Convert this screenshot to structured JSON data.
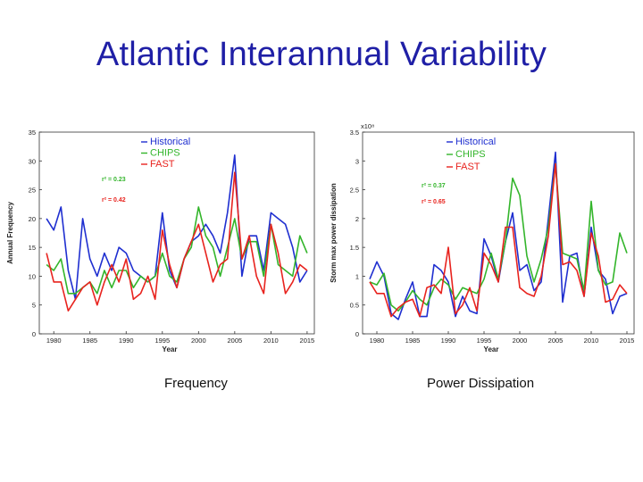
{
  "slide": {
    "title": "Atlantic Interannual Variability"
  },
  "captions": {
    "left": "Frequency",
    "right": "Power Dissipation"
  },
  "colors": {
    "historical": "#1f2fd0",
    "chips": "#33b52b",
    "fast": "#e8231e",
    "title": "#1f1fa6"
  },
  "chart_data": [
    {
      "type": "line",
      "ylabel": "Annual Frequency",
      "xlabel": "Year",
      "xlim": [
        1978,
        2016
      ],
      "ylim": [
        0,
        35
      ],
      "xticks": [
        1980,
        1985,
        1990,
        1995,
        2000,
        2005,
        2010,
        2015
      ],
      "yticks": [
        0,
        5,
        10,
        15,
        20,
        25,
        30,
        35
      ],
      "grid": false,
      "legend_position": "top-right",
      "legend": [
        "Historical",
        "CHIPS",
        "FAST"
      ],
      "annotations": [
        {
          "text": "r² = 0.23",
          "color": "#33b52b"
        },
        {
          "text": "r² = 0.42",
          "color": "#e8231e"
        }
      ],
      "x": [
        1979,
        1980,
        1981,
        1982,
        1983,
        1984,
        1985,
        1986,
        1987,
        1988,
        1989,
        1990,
        1991,
        1992,
        1993,
        1994,
        1995,
        1996,
        1997,
        1998,
        1999,
        2000,
        2001,
        2002,
        2003,
        2004,
        2005,
        2006,
        2007,
        2008,
        2009,
        2010,
        2011,
        2012,
        2013,
        2014,
        2015
      ],
      "series": [
        {
          "name": "Historical",
          "values": [
            20,
            18,
            22,
            11,
            6,
            20,
            13,
            10,
            14,
            11,
            15,
            14,
            11,
            10,
            9,
            10,
            21,
            11,
            8,
            13,
            16,
            17,
            19,
            17,
            14,
            21,
            31,
            10,
            17,
            17,
            11,
            21,
            20,
            19,
            15,
            9,
            11
          ]
        },
        {
          "name": "CHIPS",
          "values": [
            12,
            11,
            13,
            7,
            7,
            8,
            9,
            7,
            11,
            8,
            11,
            11,
            8,
            10,
            9,
            10,
            14,
            10,
            9,
            13,
            15,
            22,
            17,
            15,
            10,
            15,
            20,
            13,
            16,
            16,
            10,
            19,
            12,
            11,
            10,
            17,
            14
          ]
        },
        {
          "name": "FAST",
          "values": [
            14,
            9,
            9,
            4,
            6,
            8,
            9,
            5,
            9,
            12,
            9,
            13,
            6,
            7,
            10,
            6,
            18,
            12,
            8,
            13,
            16,
            19,
            14,
            9,
            12,
            13,
            28,
            13,
            17,
            10,
            7,
            19,
            14,
            7,
            9,
            12,
            11
          ]
        }
      ]
    },
    {
      "type": "line",
      "ylabel": "Storm max power dissipation",
      "xlabel": "Year",
      "xlim": [
        1978,
        2016
      ],
      "ylim": [
        0,
        3.5
      ],
      "exponent_label": "x10⁸",
      "xticks": [
        1980,
        1985,
        1990,
        1995,
        2000,
        2005,
        2010,
        2015
      ],
      "yticks": [
        0,
        0.5,
        1,
        1.5,
        2,
        2.5,
        3,
        3.5
      ],
      "grid": false,
      "legend_position": "top-right",
      "legend": [
        "Historical",
        "CHIPS",
        "FAST"
      ],
      "annotations": [
        {
          "text": "r² = 0.37",
          "color": "#33b52b"
        },
        {
          "text": "r² = 0.65",
          "color": "#e8231e"
        }
      ],
      "x": [
        1979,
        1980,
        1981,
        1982,
        1983,
        1984,
        1985,
        1986,
        1987,
        1988,
        1989,
        1990,
        1991,
        1992,
        1993,
        1994,
        1995,
        1996,
        1997,
        1998,
        1999,
        2000,
        2001,
        2002,
        2003,
        2004,
        2005,
        2006,
        2007,
        2008,
        2009,
        2010,
        2011,
        2012,
        2013,
        2014,
        2015
      ],
      "series": [
        {
          "name": "Historical",
          "values": [
            0.95,
            1.25,
            1.0,
            0.35,
            0.25,
            0.6,
            0.9,
            0.3,
            0.3,
            1.2,
            1.1,
            0.9,
            0.3,
            0.65,
            0.4,
            0.35,
            1.65,
            1.35,
            0.9,
            1.6,
            2.1,
            1.1,
            1.2,
            0.75,
            0.9,
            2.0,
            3.15,
            0.55,
            1.35,
            1.4,
            0.65,
            1.85,
            1.1,
            0.95,
            0.35,
            0.65,
            0.7
          ]
        },
        {
          "name": "CHIPS",
          "values": [
            0.9,
            0.85,
            1.05,
            0.5,
            0.4,
            0.55,
            0.75,
            0.6,
            0.5,
            0.8,
            0.95,
            0.85,
            0.6,
            0.8,
            0.75,
            0.7,
            0.95,
            1.4,
            0.95,
            1.6,
            2.7,
            2.4,
            1.35,
            0.9,
            1.3,
            1.85,
            2.95,
            1.4,
            1.35,
            1.3,
            0.75,
            2.3,
            1.1,
            0.85,
            0.9,
            1.75,
            1.4
          ]
        },
        {
          "name": "FAST",
          "values": [
            0.9,
            0.7,
            0.7,
            0.3,
            0.45,
            0.55,
            0.6,
            0.3,
            0.8,
            0.85,
            0.7,
            1.5,
            0.35,
            0.5,
            0.8,
            0.4,
            1.4,
            1.2,
            0.9,
            1.85,
            1.85,
            0.8,
            0.7,
            0.65,
            1.0,
            1.7,
            2.95,
            1.2,
            1.25,
            1.1,
            0.65,
            1.75,
            1.35,
            0.55,
            0.6,
            0.85,
            0.7
          ]
        }
      ]
    }
  ]
}
